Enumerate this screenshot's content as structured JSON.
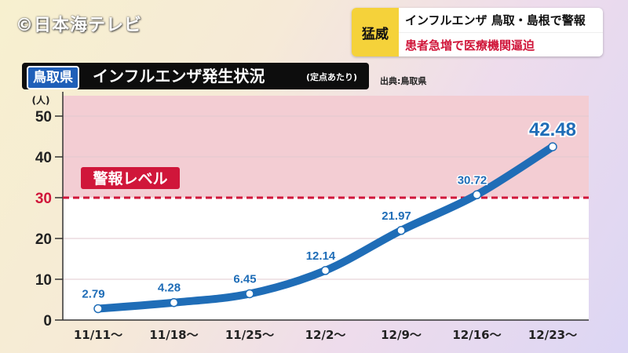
{
  "watermark": "©日本海テレビ",
  "news": {
    "tag": "猛威",
    "line1": "インフルエンザ 鳥取・島根で警報",
    "line2": "患者急増で医療機関逼迫"
  },
  "header": {
    "prefecture": "鳥取県",
    "title": "インフルエンザ発生状況",
    "subtitle": "(定点あたり)",
    "source": "出典:鳥取県"
  },
  "chart_data": {
    "type": "line",
    "title": "インフルエンザ発生状況",
    "ylabel": "(人)",
    "categories": [
      "11/11〜",
      "11/18〜",
      "11/25〜",
      "12/2〜",
      "12/9〜",
      "12/16〜",
      "12/23〜"
    ],
    "values": [
      2.79,
      4.28,
      6.45,
      12.14,
      21.97,
      30.72,
      42.48
    ],
    "value_labels": [
      "2.79",
      "4.28",
      "6.45",
      "12.14",
      "21.97",
      "30.72",
      "42.48"
    ],
    "ylim": [
      0,
      55
    ],
    "yticks": [
      0,
      10,
      20,
      30,
      40,
      50
    ],
    "ytick_labels": [
      "0",
      "10",
      "20",
      "30",
      "40",
      "50"
    ],
    "alert_level": 30,
    "alert_label": "警報レベル",
    "colors": {
      "line": "#1f6db7",
      "alert_zone": "#f3cdd3",
      "alert_line": "#d0163a",
      "label": "#1f6db7"
    }
  }
}
